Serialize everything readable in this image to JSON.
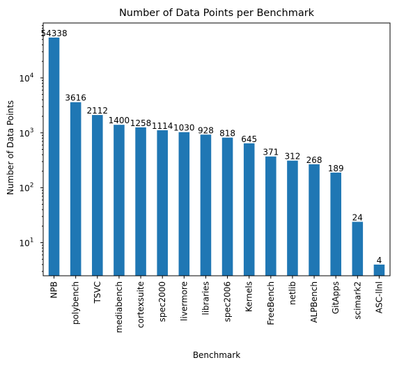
{
  "chart_data": {
    "type": "bar",
    "title": "Number of Data Points per Benchmark",
    "xlabel": "Benchmark",
    "ylabel": "Number of Data Points",
    "yscale": "log",
    "ylim": [
      2.5,
      100000
    ],
    "yticks": [
      {
        "value": 10,
        "base": "10",
        "exp": "1"
      },
      {
        "value": 100,
        "base": "10",
        "exp": "2"
      },
      {
        "value": 1000,
        "base": "10",
        "exp": "3"
      },
      {
        "value": 10000,
        "base": "10",
        "exp": "4"
      }
    ],
    "grid": false,
    "bar_color": "#1f77b4",
    "categories": [
      "NPB",
      "polybench",
      "TSVC",
      "mediabench",
      "cortexsuite",
      "spec2000",
      "livermore",
      "libraries",
      "spec2006",
      "Kernels",
      "FreeBench",
      "netlib",
      "ALPBench",
      "GitApps",
      "scimark2",
      "ASC-llnl"
    ],
    "values": [
      54338,
      3616,
      2112,
      1400,
      1258,
      1114,
      1030,
      928,
      818,
      645,
      371,
      312,
      268,
      189,
      24,
      4
    ],
    "data_labels": [
      "54338",
      "3616",
      "2112",
      "1400",
      "1258",
      "1114",
      "1030",
      "928",
      "818",
      "645",
      "371",
      "312",
      "268",
      "189",
      "24",
      "4"
    ]
  }
}
